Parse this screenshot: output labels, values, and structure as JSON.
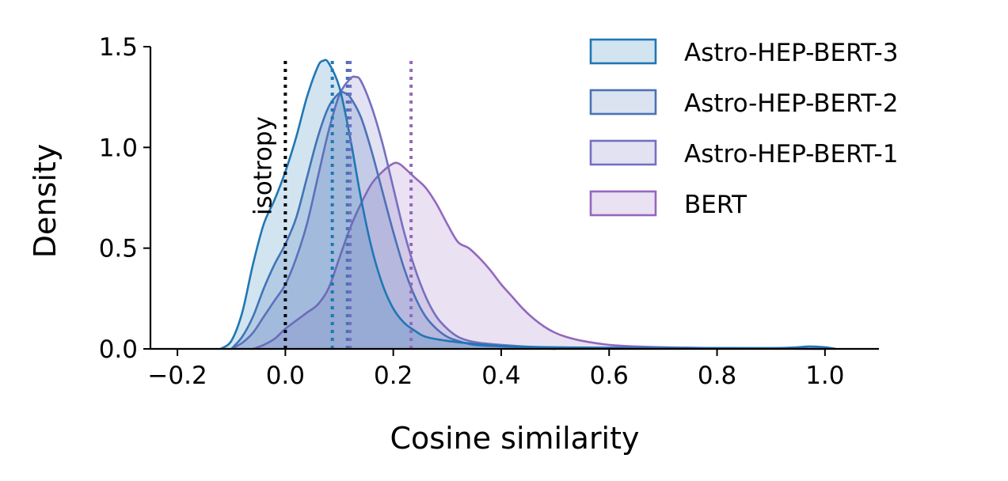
{
  "chart_data": {
    "type": "area",
    "subtype": "kde-density",
    "xlabel": "Cosine similarity",
    "ylabel": "Density",
    "xlim": [
      -0.25,
      1.1
    ],
    "ylim": [
      0,
      1.5
    ],
    "xticks": [
      -0.2,
      0.0,
      0.2,
      0.4,
      0.6,
      0.8,
      1.0
    ],
    "xtick_labels": [
      "−0.2",
      "0.0",
      "0.2",
      "0.4",
      "0.6",
      "0.8",
      "1.0"
    ],
    "yticks": [
      0.0,
      0.5,
      1.0,
      1.5
    ],
    "ytick_labels": [
      "0.0",
      "0.5",
      "1.0",
      "1.5"
    ],
    "grid": false,
    "legend_position": "top-right",
    "annotation": {
      "text": "isotropy",
      "x": 0.0,
      "color": "#000000"
    },
    "series": [
      {
        "name": "BERT",
        "color": "#9467bd",
        "mean": 0.233,
        "x": [
          -0.06,
          -0.04,
          -0.02,
          0.0,
          0.02,
          0.04,
          0.06,
          0.08,
          0.1,
          0.12,
          0.14,
          0.16,
          0.18,
          0.2,
          0.21,
          0.22,
          0.24,
          0.26,
          0.28,
          0.3,
          0.32,
          0.34,
          0.36,
          0.38,
          0.4,
          0.42,
          0.44,
          0.46,
          0.48,
          0.5,
          0.52,
          0.55,
          0.6,
          0.65,
          0.7,
          0.75,
          0.8,
          0.9,
          1.0
        ],
        "y": [
          0.0,
          0.02,
          0.05,
          0.1,
          0.14,
          0.18,
          0.22,
          0.3,
          0.45,
          0.6,
          0.72,
          0.82,
          0.88,
          0.92,
          0.92,
          0.9,
          0.85,
          0.8,
          0.72,
          0.62,
          0.53,
          0.5,
          0.45,
          0.39,
          0.32,
          0.26,
          0.2,
          0.15,
          0.11,
          0.08,
          0.06,
          0.04,
          0.02,
          0.012,
          0.008,
          0.006,
          0.004,
          0.002,
          0.0
        ]
      },
      {
        "name": "Astro-HEP-BERT-1",
        "color": "#7570c0",
        "mean": 0.12,
        "x": [
          -0.1,
          -0.08,
          -0.06,
          -0.04,
          -0.02,
          0.0,
          0.02,
          0.04,
          0.06,
          0.08,
          0.1,
          0.12,
          0.13,
          0.14,
          0.16,
          0.18,
          0.2,
          0.22,
          0.24,
          0.26,
          0.28,
          0.3,
          0.32,
          0.34,
          0.36,
          0.4,
          0.45,
          0.5
        ],
        "y": [
          0.0,
          0.03,
          0.08,
          0.16,
          0.24,
          0.32,
          0.45,
          0.62,
          0.85,
          1.08,
          1.26,
          1.34,
          1.35,
          1.33,
          1.2,
          1.02,
          0.8,
          0.58,
          0.4,
          0.26,
          0.16,
          0.1,
          0.06,
          0.04,
          0.03,
          0.02,
          0.01,
          0.0
        ]
      },
      {
        "name": "Astro-HEP-BERT-2",
        "color": "#4a72b8",
        "mean": 0.115,
        "x": [
          -0.1,
          -0.08,
          -0.06,
          -0.04,
          -0.02,
          0.0,
          0.02,
          0.04,
          0.06,
          0.08,
          0.1,
          0.11,
          0.12,
          0.14,
          0.16,
          0.18,
          0.2,
          0.22,
          0.24,
          0.26,
          0.28,
          0.3,
          0.32,
          0.35,
          0.4,
          0.45,
          0.5
        ],
        "y": [
          0.0,
          0.06,
          0.16,
          0.3,
          0.42,
          0.52,
          0.65,
          0.85,
          1.05,
          1.2,
          1.27,
          1.27,
          1.25,
          1.15,
          0.98,
          0.78,
          0.58,
          0.4,
          0.26,
          0.16,
          0.1,
          0.06,
          0.04,
          0.02,
          0.012,
          0.006,
          0.0
        ]
      },
      {
        "name": "Astro-HEP-BERT-3",
        "color": "#1f77b4",
        "mean": 0.087,
        "x": [
          -0.12,
          -0.1,
          -0.08,
          -0.06,
          -0.04,
          -0.02,
          0.0,
          0.02,
          0.04,
          0.06,
          0.07,
          0.08,
          0.1,
          0.12,
          0.14,
          0.16,
          0.18,
          0.2,
          0.22,
          0.24,
          0.26,
          0.3,
          0.35,
          0.4,
          0.5,
          0.6,
          0.8,
          0.9,
          0.95,
          0.97,
          1.0,
          1.02
        ],
        "y": [
          0.0,
          0.04,
          0.18,
          0.42,
          0.62,
          0.74,
          0.88,
          1.05,
          1.25,
          1.4,
          1.43,
          1.42,
          1.3,
          1.05,
          0.75,
          0.5,
          0.32,
          0.2,
          0.13,
          0.09,
          0.06,
          0.04,
          0.025,
          0.015,
          0.008,
          0.006,
          0.004,
          0.004,
          0.008,
          0.012,
          0.008,
          0.0
        ]
      }
    ]
  }
}
